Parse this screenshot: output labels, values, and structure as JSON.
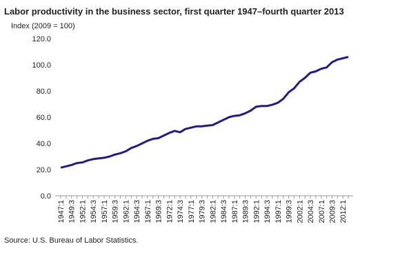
{
  "chart_data": {
    "type": "line",
    "title": "Labor productivity in the business sector, first quarter 1947–fourth quarter 2013",
    "y_label": "Index (2009 = 100)",
    "source": "Source: U.S. Bureau of Labor Statistics.",
    "categories": [
      "1947:1",
      null,
      "1949:3",
      null,
      "1952:1",
      null,
      "1954:3",
      null,
      "1957:1",
      null,
      "1959:3",
      null,
      "1962:1",
      null,
      "1964:3",
      null,
      "1967:1",
      null,
      "1969:3",
      null,
      "1972:1",
      null,
      "1974:3",
      null,
      "1977:1",
      null,
      "1979:3",
      null,
      "1982:1",
      null,
      "1984:3",
      null,
      "1987:1",
      null,
      "1989:3",
      null,
      "1992:1",
      null,
      "1994:3",
      null,
      "1997:1",
      null,
      "1999:3",
      null,
      "2002:1",
      null,
      "2004:3",
      null,
      "2007:1",
      null,
      "2009:3",
      null,
      "2012:1",
      null
    ],
    "series": [
      {
        "name": "Labor productivity",
        "color": "#1f1a8f",
        "values": [
          21.5,
          22.5,
          23.5,
          25,
          25.5,
          27,
          28,
          28.5,
          29,
          30,
          31.5,
          32.5,
          34,
          36.5,
          38,
          40,
          42,
          43.5,
          44,
          46,
          48,
          49.5,
          48.5,
          51,
          52,
          53,
          53,
          53.5,
          54,
          56,
          58,
          60,
          61,
          61.5,
          63,
          65,
          68,
          68.5,
          68.5,
          69.5,
          71,
          74,
          79,
          82,
          87,
          90,
          94,
          95,
          97,
          98,
          102,
          104,
          105,
          106
        ]
      }
    ],
    "ylim": [
      0,
      120
    ],
    "yticks": [
      {
        "value": 0,
        "label": "0.0"
      },
      {
        "value": 20,
        "label": "20.0"
      },
      {
        "value": 40,
        "label": "40.0"
      },
      {
        "value": 60,
        "label": "60.0"
      },
      {
        "value": 80,
        "label": "80.0"
      },
      {
        "value": 100,
        "label": "100.0"
      },
      {
        "value": 120,
        "label": "120.0"
      }
    ]
  }
}
